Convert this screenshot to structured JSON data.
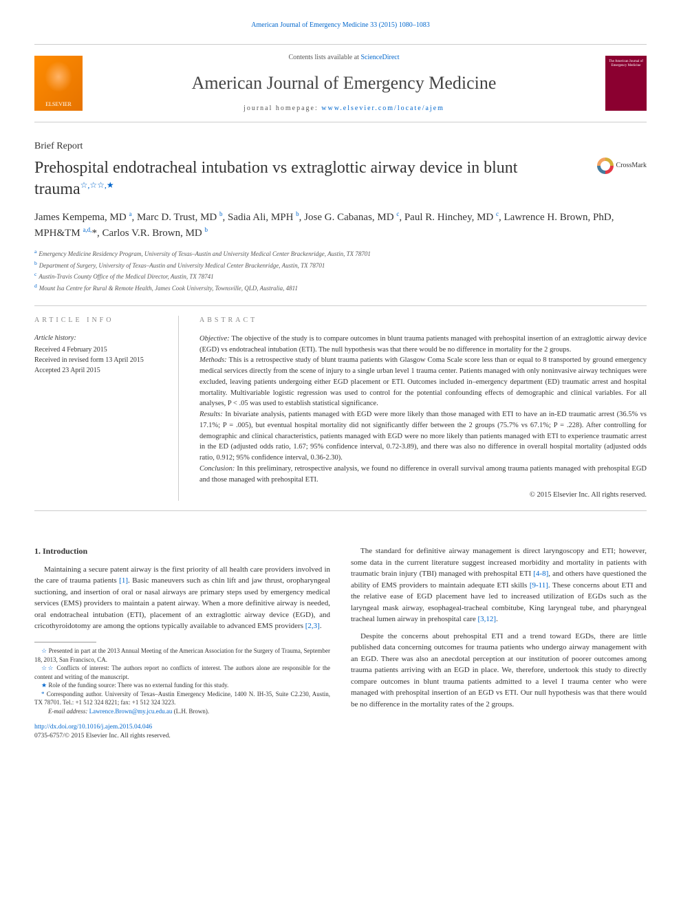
{
  "top_link": "American Journal of Emergency Medicine 33 (2015) 1080–1083",
  "header": {
    "contents_prefix": "Contents lists available at ",
    "contents_link": "ScienceDirect",
    "journal_name": "American Journal of Emergency Medicine",
    "homepage_prefix": "journal homepage: ",
    "homepage_link": "www.elsevier.com/locate/ajem",
    "publisher_logo": "ELSEVIER",
    "cover_text": "The American Journal of Emergency Medicine"
  },
  "article_type": "Brief Report",
  "title": "Prehospital endotracheal intubation vs extraglottic airway device in blunt trauma",
  "title_marks": "☆,☆☆,★",
  "crossmark_label": "CrossMark",
  "authors_html": "James Kempema, MD <sup>a</sup>, Marc D. Trust, MD <sup>b</sup>, Sadia Ali, MPH <sup>b</sup>, Jose G. Cabanas, MD <sup>c</sup>, Paul R. Hinchey, MD <sup>c</sup>, Lawrence H. Brown, PhD, MPH&TM <sup>a,d,</sup>*, Carlos V.R. Brown, MD <sup>b</sup>",
  "affiliations": [
    {
      "sup": "a",
      "text": "Emergency Medicine Residency Program, University of Texas–Austin and University Medical Center Brackenridge, Austin, TX 78701"
    },
    {
      "sup": "b",
      "text": "Department of Surgery, University of Texas–Austin and University Medical Center Brackenridge, Austin, TX 78701"
    },
    {
      "sup": "c",
      "text": "Austin-Travis County Office of the Medical Director, Austin, TX 78741"
    },
    {
      "sup": "d",
      "text": "Mount Isa Centre for Rural & Remote Health, James Cook University, Townsville, QLD, Australia, 4811"
    }
  ],
  "info_heading": "ARTICLE INFO",
  "abstract_heading": "ABSTRACT",
  "history": {
    "title": "Article history:",
    "received": "Received 4 February 2015",
    "revised": "Received in revised form 13 April 2015",
    "accepted": "Accepted 23 April 2015"
  },
  "abstract": {
    "objective": "Objective: The objective of the study is to compare outcomes in blunt trauma patients managed with prehospital insertion of an extraglottic airway device (EGD) vs endotracheal intubation (ETI). The null hypothesis was that there would be no difference in mortality for the 2 groups.",
    "methods": "Methods: This is a retrospective study of blunt trauma patients with Glasgow Coma Scale score less than or equal to 8 transported by ground emergency medical services directly from the scene of injury to a single urban level 1 trauma center. Patients managed with only noninvasive airway techniques were excluded, leaving patients undergoing either EGD placement or ETI. Outcomes included in–emergency department (ED) traumatic arrest and hospital mortality. Multivariable logistic regression was used to control for the potential confounding effects of demographic and clinical variables. For all analyses, P < .05 was used to establish statistical significance.",
    "results": "Results: In bivariate analysis, patients managed with EGD were more likely than those managed with ETI to have an in-ED traumatic arrest (36.5% vs 17.1%; P = .005), but eventual hospital mortality did not significantly differ between the 2 groups (75.7% vs 67.1%; P = .228). After controlling for demographic and clinical characteristics, patients managed with EGD were no more likely than patients managed with ETI to experience traumatic arrest in the ED (adjusted odds ratio, 1.67; 95% confidence interval, 0.72-3.89), and there was also no difference in overall hospital mortality (adjusted odds ratio, 0.912; 95% confidence interval, 0.36-2.30).",
    "conclusion": "Conclusion: In this preliminary, retrospective analysis, we found no difference in overall survival among trauma patients managed with prehospital EGD and those managed with prehospital ETI.",
    "copyright": "© 2015 Elsevier Inc. All rights reserved."
  },
  "section1_heading": "1. Introduction",
  "body": {
    "p1": "Maintaining a secure patent airway is the first priority of all health care providers involved in the care of trauma patients [1]. Basic maneuvers such as chin lift and jaw thrust, oropharyngeal suctioning, and insertion of oral or nasal airways are primary steps used by emergency medical services (EMS) providers to maintain a patent airway. When a more definitive airway is needed, oral endotracheal intubation (ETI), placement of an extraglottic airway device (EGD), and cricothyroidotomy are among the options typically available to advanced EMS providers [2,3].",
    "p2": "The standard for definitive airway management is direct laryngoscopy and ETI; however, some data in the current literature suggest increased morbidity and mortality in patients with traumatic brain injury (TBI) managed with prehospital ETI [4-8], and others have questioned the ability of EMS providers to maintain adequate ETI skills [9-11]. These concerns about ETI and the relative ease of EGD placement have led to increased utilization of EGDs such as the laryngeal mask airway, esophageal-tracheal combitube, King laryngeal tube, and pharyngeal tracheal lumen airway in prehospital care [3,12].",
    "p3": "Despite the concerns about prehospital ETI and a trend toward EGDs, there are little published data concerning outcomes for trauma patients who undergo airway management with an EGD. There was also an anecdotal perception at our institution of poorer outcomes among trauma patients arriving with an EGD in place. We, therefore, undertook this study to directly compare outcomes in blunt trauma patients admitted to a level I trauma center who were managed with prehospital insertion of an EGD vs ETI. Our null hypothesis was that there would be no difference in the mortality rates of the 2 groups."
  },
  "footnotes": {
    "f1": "Presented in part at the 2013 Annual Meeting of the American Association for the Surgery of Trauma, September 18, 2013, San Francisco, CA.",
    "f2": "Conflicts of interest: The authors report no conflicts of interest. The authors alone are responsible for the content and writing of the manuscript.",
    "f3": "Role of the funding source: There was no external funding for this study.",
    "corr": "Corresponding author. University of Texas–Austin Emergency Medicine, 1400 N. IH-35, Suite C2.230, Austin, TX 78701. Tel.: +1 512 324 8221; fax: +1 512 324 3223.",
    "email_label": "E-mail address: ",
    "email": "Lawrence.Brown@my.jcu.edu.au",
    "email_suffix": " (L.H. Brown)."
  },
  "doi": "http://dx.doi.org/10.1016/j.ajem.2015.04.046",
  "issn": "0735-6757/© 2015 Elsevier Inc. All rights reserved.",
  "colors": {
    "link": "#0066cc",
    "text": "#333333",
    "rule": "#cccccc",
    "logo_bg": "#ff8c00",
    "cover_bg": "#8b0030"
  }
}
